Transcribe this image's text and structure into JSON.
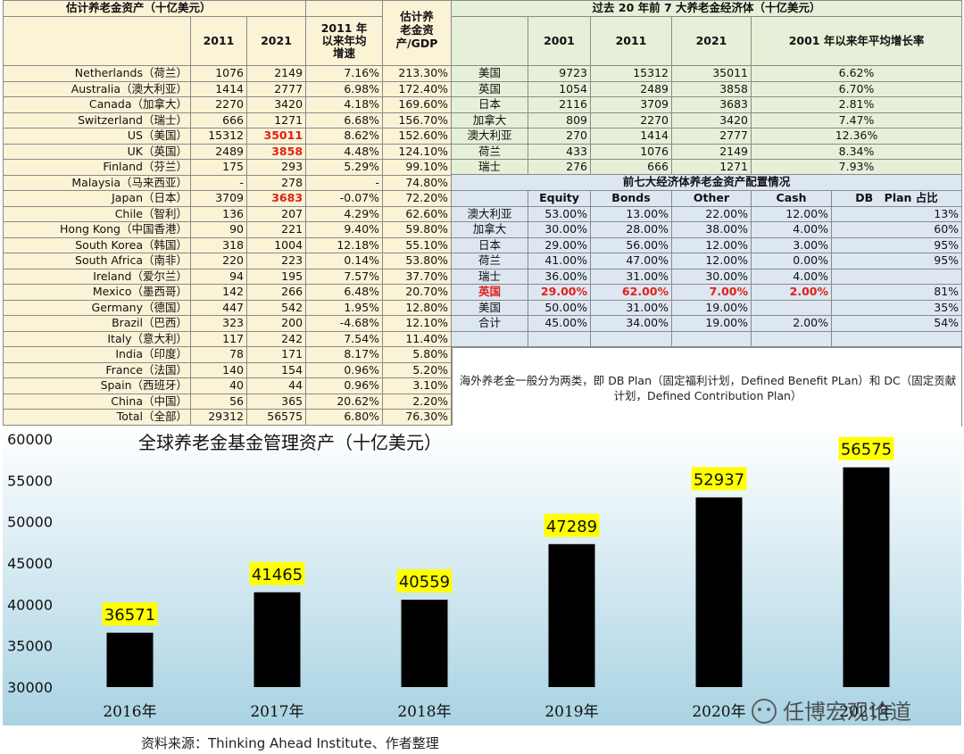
{
  "left_table": {
    "title": "估计养老金资产（十亿美元）",
    "col_2011": "2011",
    "col_2021": "2021",
    "col_growth": [
      "2011 年",
      "以来年均",
      "增速"
    ],
    "col_gdp": [
      "估计养",
      "老金资",
      "产/GDP"
    ],
    "rows": [
      {
        "name": "Netherlands（荷兰）",
        "v2011": "1076",
        "v2021": "2149",
        "growth": "7.16%",
        "gdp": "213.30%",
        "hl": false
      },
      {
        "name": "Australia（澳大利亚）",
        "v2011": "1414",
        "v2021": "2777",
        "growth": "6.98%",
        "gdp": "172.40%",
        "hl": false
      },
      {
        "name": "Canada（加拿大）",
        "v2011": "2270",
        "v2021": "3420",
        "growth": "4.18%",
        "gdp": "169.60%",
        "hl": false
      },
      {
        "name": "Switzerland（瑞士）",
        "v2011": "666",
        "v2021": "1271",
        "growth": "6.68%",
        "gdp": "156.70%",
        "hl": false
      },
      {
        "name": "US（美国）",
        "v2011": "15312",
        "v2021": "35011",
        "growth": "8.62%",
        "gdp": "152.60%",
        "hl": true
      },
      {
        "name": "UK（英国）",
        "v2011": "2489",
        "v2021": "3858",
        "growth": "4.48%",
        "gdp": "124.10%",
        "hl": true
      },
      {
        "name": "Finland（芬兰）",
        "v2011": "175",
        "v2021": "293",
        "growth": "5.29%",
        "gdp": "99.10%",
        "hl": false
      },
      {
        "name": "Malaysia（马来西亚）",
        "v2011": "-",
        "v2021": "278",
        "growth": "-",
        "gdp": "74.80%",
        "hl": false
      },
      {
        "name": "Japan（日本）",
        "v2011": "3709",
        "v2021": "3683",
        "growth": "-0.07%",
        "gdp": "72.20%",
        "hl": true
      },
      {
        "name": "Chile（智利）",
        "v2011": "136",
        "v2021": "207",
        "growth": "4.29%",
        "gdp": "62.60%",
        "hl": false
      },
      {
        "name": "Hong Kong（中国香港）",
        "v2011": "90",
        "v2021": "221",
        "growth": "9.40%",
        "gdp": "59.80%",
        "hl": false
      },
      {
        "name": "South Korea（韩国）",
        "v2011": "318",
        "v2021": "1004",
        "growth": "12.18%",
        "gdp": "55.10%",
        "hl": false
      },
      {
        "name": "South Africa（南非）",
        "v2011": "220",
        "v2021": "223",
        "growth": "0.14%",
        "gdp": "53.80%",
        "hl": false
      },
      {
        "name": "Ireland（爱尔兰）",
        "v2011": "94",
        "v2021": "195",
        "growth": "7.57%",
        "gdp": "37.70%",
        "hl": false
      },
      {
        "name": "Mexico（墨西哥）",
        "v2011": "142",
        "v2021": "266",
        "growth": "6.48%",
        "gdp": "20.70%",
        "hl": false
      },
      {
        "name": "Germany（德国）",
        "v2011": "447",
        "v2021": "542",
        "growth": "1.95%",
        "gdp": "12.80%",
        "hl": false
      },
      {
        "name": "Brazil（巴西）",
        "v2011": "323",
        "v2021": "200",
        "growth": "-4.68%",
        "gdp": "12.10%",
        "hl": false
      },
      {
        "name": "Italy（意大利）",
        "v2011": "117",
        "v2021": "242",
        "growth": "7.54%",
        "gdp": "11.40%",
        "hl": false
      },
      {
        "name": "India（印度）",
        "v2011": "78",
        "v2021": "171",
        "growth": "8.17%",
        "gdp": "5.80%",
        "hl": false
      },
      {
        "name": "France（法国）",
        "v2011": "140",
        "v2021": "154",
        "growth": "0.96%",
        "gdp": "5.20%",
        "hl": false
      },
      {
        "name": "Spain（西班牙）",
        "v2011": "40",
        "v2021": "44",
        "growth": "0.96%",
        "gdp": "3.10%",
        "hl": false
      },
      {
        "name": "China（中国）",
        "v2011": "56",
        "v2021": "365",
        "growth": "20.62%",
        "gdp": "2.20%",
        "hl": false
      },
      {
        "name": "Total（全部）",
        "v2011": "29312",
        "v2021": "56575",
        "growth": "6.80%",
        "gdp": "76.30%",
        "hl": false
      }
    ]
  },
  "growth_table": {
    "title": "过去 20 年前 7 大养老金经济体（十亿美元）",
    "col_2001": "2001",
    "col_2011": "2011",
    "col_2021": "2021",
    "col_rate": "2001 年以来年平均增长率",
    "rows": [
      {
        "name": "美国",
        "v2001": "9723",
        "v2011": "15312",
        "v2021": "35011",
        "rate": "6.62%"
      },
      {
        "name": "英国",
        "v2001": "1054",
        "v2011": "2489",
        "v2021": "3858",
        "rate": "6.70%"
      },
      {
        "name": "日本",
        "v2001": "2116",
        "v2011": "3709",
        "v2021": "3683",
        "rate": "2.81%"
      },
      {
        "name": "加拿大",
        "v2001": "809",
        "v2011": "2270",
        "v2021": "3420",
        "rate": "7.47%"
      },
      {
        "name": "澳大利亚",
        "v2001": "270",
        "v2011": "1414",
        "v2021": "2777",
        "rate": "12.36%"
      },
      {
        "name": "荷兰",
        "v2001": "433",
        "v2011": "1076",
        "v2021": "2149",
        "rate": "8.34%"
      },
      {
        "name": "瑞士",
        "v2001": "276",
        "v2011": "666",
        "v2021": "1271",
        "rate": "7.93%"
      }
    ]
  },
  "allocation_table": {
    "title": "前七大经济体养老金资产配置情况",
    "col_equity": "Equity",
    "col_bonds": "Bonds",
    "col_other": "Other",
    "col_cash": "Cash",
    "col_db": "DB　Plan 占比",
    "rows": [
      {
        "name": "澳大利亚",
        "equity": "53.00%",
        "bonds": "13.00%",
        "other": "22.00%",
        "cash": "12.00%",
        "db": "13%",
        "hl": false
      },
      {
        "name": "加拿大",
        "equity": "30.00%",
        "bonds": "28.00%",
        "other": "38.00%",
        "cash": "4.00%",
        "db": "60%",
        "hl": false
      },
      {
        "name": "日本",
        "equity": "29.00%",
        "bonds": "56.00%",
        "other": "12.00%",
        "cash": "3.00%",
        "db": "95%",
        "hl": false
      },
      {
        "name": "荷兰",
        "equity": "41.00%",
        "bonds": "47.00%",
        "other": "12.00%",
        "cash": "0.00%",
        "db": "95%",
        "hl": false
      },
      {
        "name": "瑞士",
        "equity": "36.00%",
        "bonds": "31.00%",
        "other": "30.00%",
        "cash": "4.00%",
        "db": "",
        "hl": false
      },
      {
        "name": "英国",
        "equity": "29.00%",
        "bonds": "62.00%",
        "other": "7.00%",
        "cash": "2.00%",
        "db": "81%",
        "hl": true
      },
      {
        "name": "美国",
        "equity": "50.00%",
        "bonds": "31.00%",
        "other": "19.00%",
        "cash": "",
        "db": "35%",
        "hl": false
      },
      {
        "name": "合计",
        "equity": "45.00%",
        "bonds": "34.00%",
        "other": "19.00%",
        "cash": "2.00%",
        "db": "54%",
        "hl": false
      }
    ]
  },
  "note": "海外养老金一般分为两类，即 DB Plan（固定福利计划，Defined Benefit PLan）和 DC（固定贡献计划，Defined Contribution Plan）",
  "chart_data": {
    "type": "bar",
    "title": "全球养老金基金管理资产（十亿美元）",
    "categories": [
      "2016年",
      "2017年",
      "2018年",
      "2019年",
      "2020年",
      "2021年"
    ],
    "values": [
      36571,
      41465,
      40559,
      47289,
      52937,
      56575
    ],
    "ylim": [
      30000,
      60000
    ],
    "yticks": [
      30000,
      35000,
      40000,
      45000,
      50000,
      55000,
      60000
    ],
    "bar_color": "#000000",
    "label_bg": "#ffff00",
    "grid": false
  },
  "watermark": "任博宏观论道",
  "source": "资料来源：Thinking Ahead Institute、作者整理"
}
